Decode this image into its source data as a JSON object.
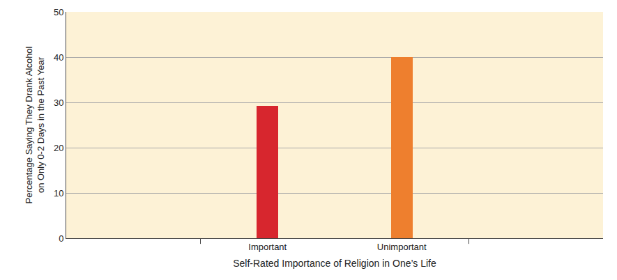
{
  "chart_data": {
    "type": "bar",
    "xlabel": "Self-Rated Importance of Religion in One’s Life",
    "ylabel": "Percentage Saying They Drank Alcohol\non Only 0-2 Days in the Past Year",
    "categories": [
      "Important",
      "Unimportant"
    ],
    "values": [
      29.2,
      40
    ],
    "colors": [
      "#d7262e",
      "#ee7f2e"
    ],
    "ylim": [
      0,
      50
    ],
    "yticks": [
      0,
      10,
      20,
      30,
      40,
      50
    ],
    "grid": true
  }
}
